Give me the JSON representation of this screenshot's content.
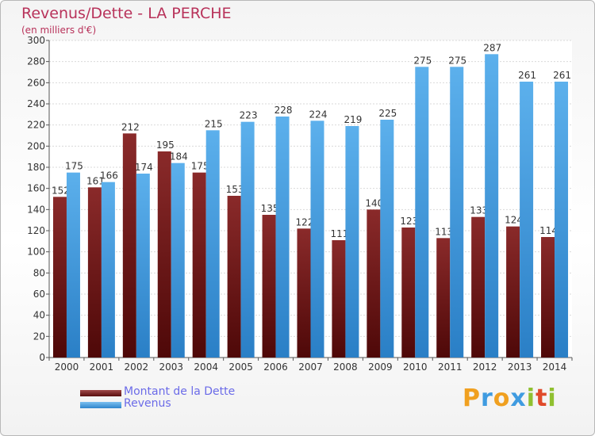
{
  "header": {
    "title": "Revenus/Dette - LA PERCHE",
    "subtitle": "(en milliers d'€)"
  },
  "legend": [
    {
      "label": "Montant de la Dette",
      "color": "#7a1a1a"
    },
    {
      "label": "Revenus",
      "color": "#3f9be0"
    }
  ],
  "logo": {
    "letters": [
      "P",
      "r",
      "o",
      "x",
      "i",
      "t",
      "i"
    ],
    "colors": [
      "#f0a020",
      "#3f9be0",
      "#f0a020",
      "#3f9be0",
      "#90c030",
      "#e04a2a",
      "#90c030"
    ]
  },
  "chart_data": {
    "type": "bar",
    "categories": [
      "2000",
      "2001",
      "2002",
      "2003",
      "2004",
      "2005",
      "2006",
      "2007",
      "2008",
      "2009",
      "2010",
      "2011",
      "2012",
      "2013",
      "2014"
    ],
    "series": [
      {
        "name": "Montant de la Dette",
        "values": [
          152,
          161,
          212,
          195,
          175,
          153,
          135,
          122,
          111,
          140,
          123,
          113,
          133,
          124,
          114
        ],
        "color": "#7a1a1a"
      },
      {
        "name": "Revenus",
        "values": [
          175,
          166,
          174,
          184,
          215,
          223,
          228,
          224,
          219,
          225,
          275,
          275,
          287,
          261,
          261
        ],
        "color": "#3f9be0"
      }
    ],
    "ylim": [
      0,
      300
    ],
    "yticks": [
      0,
      20,
      40,
      60,
      80,
      100,
      120,
      140,
      160,
      180,
      200,
      220,
      240,
      260,
      280,
      300
    ],
    "grid": true,
    "legend_position": "bottom-left"
  }
}
